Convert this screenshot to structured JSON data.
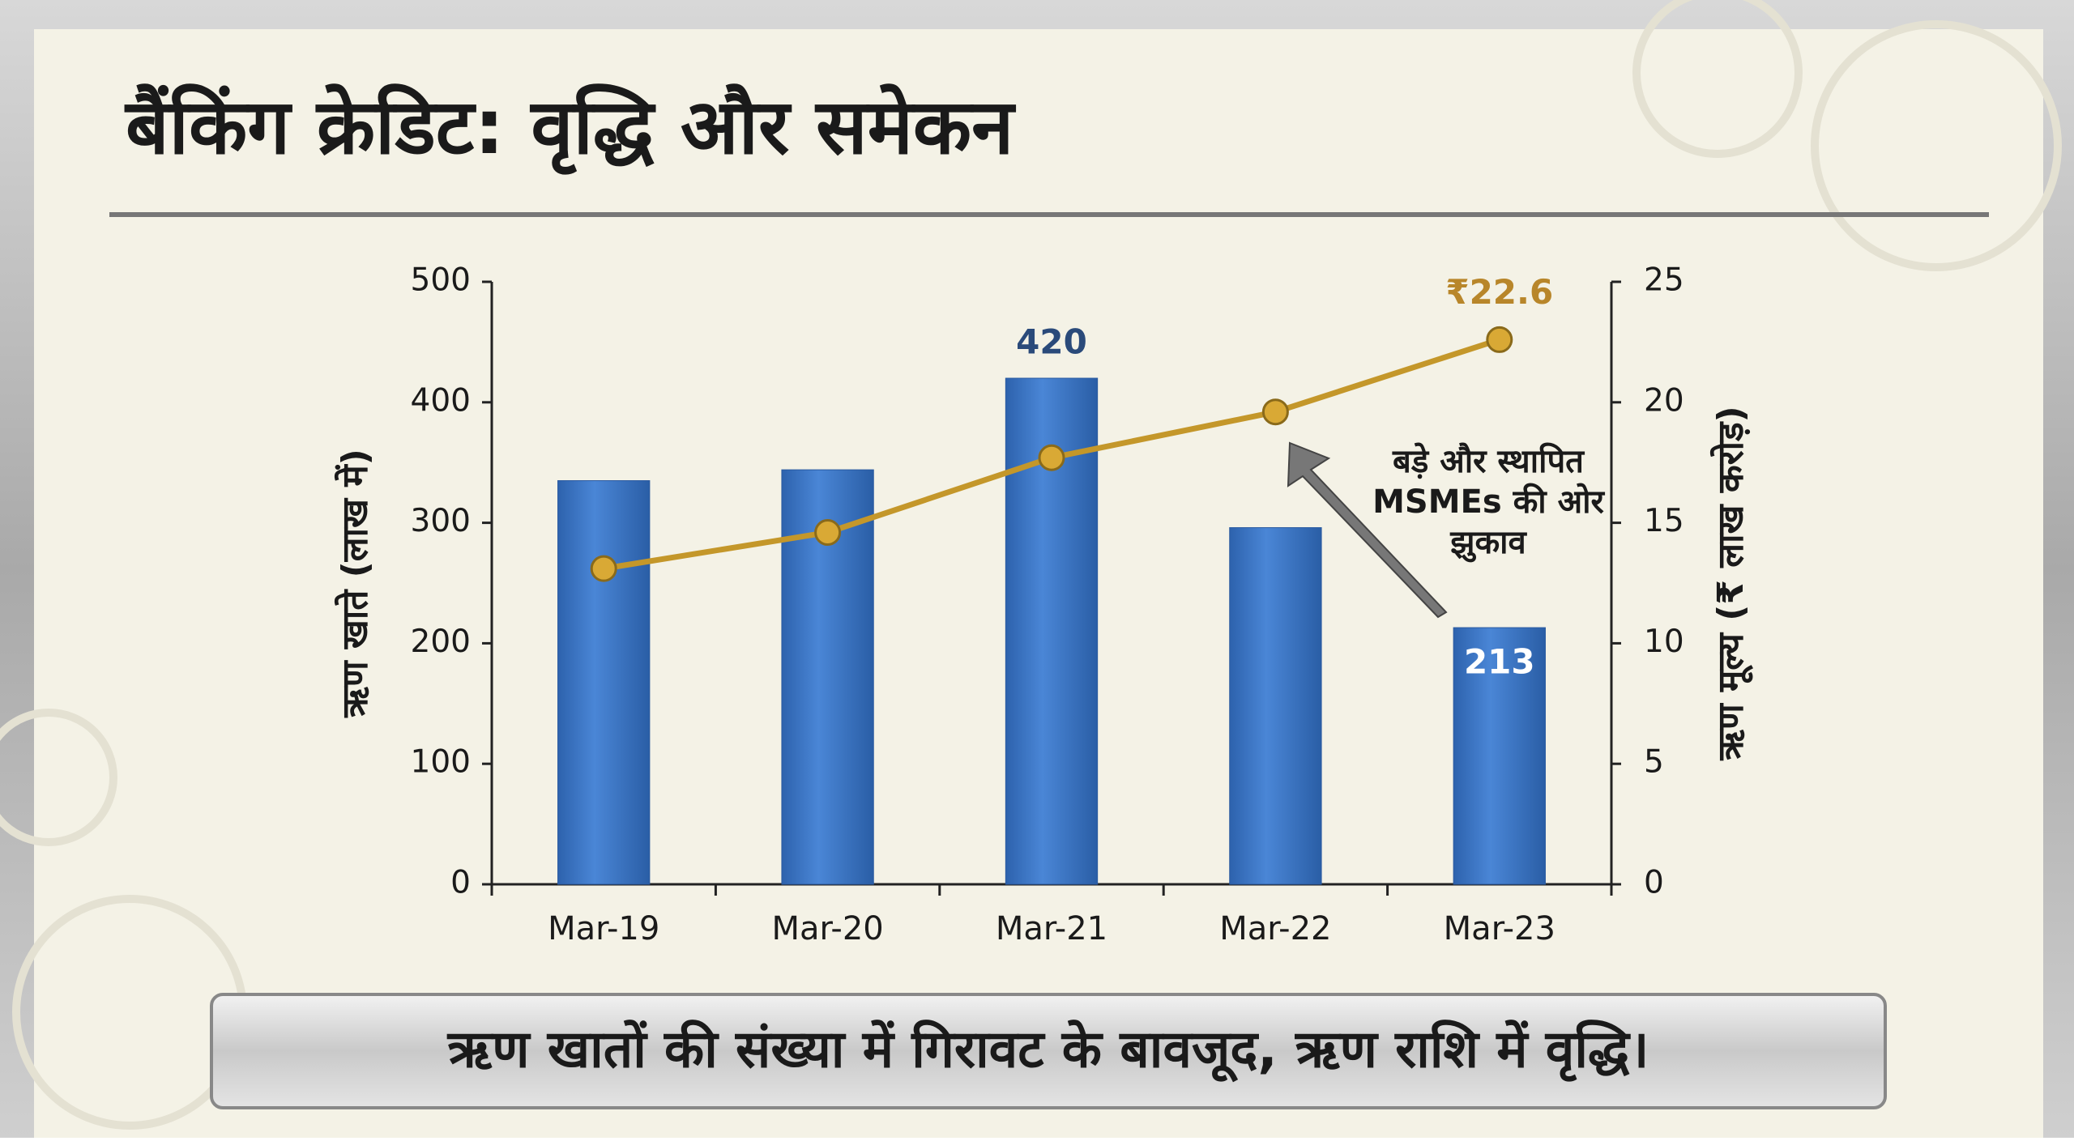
{
  "chart_data": {
    "type": "bar_line",
    "title": "बैंकिंग क्रेडिट: वृद्धि और समेकन",
    "categories": [
      "Mar-19",
      "Mar-20",
      "Mar-21",
      "Mar-22",
      "Mar-23"
    ],
    "series": [
      {
        "name": "ऋण खाते",
        "type": "bar",
        "color": "#3a74c4",
        "values": [
          335,
          344,
          420,
          296,
          213
        ],
        "value_labels": [
          null,
          null,
          "420",
          null,
          "213"
        ]
      },
      {
        "name": "ऋण मूल्य",
        "type": "line",
        "axis": "y2",
        "color": "#c4972a",
        "values": [
          13.1,
          14.6,
          17.7,
          19.6,
          22.6
        ],
        "value_labels": [
          null,
          null,
          null,
          null,
          "₹22.6"
        ]
      }
    ],
    "ylabel": "ऋण खाते (लाख में)",
    "y2label": "ऋण मूल्य (₹ लाख करोड़)",
    "ylim": [
      0,
      500
    ],
    "yticks": [
      0,
      100,
      200,
      300,
      400,
      500
    ],
    "y2lim": [
      0,
      25
    ],
    "y2ticks": [
      0,
      5,
      10,
      15,
      20,
      25
    ],
    "annotation": [
      "बड़े और स्थापित",
      "MSMEs की ओर",
      "झुकाव"
    ],
    "footer": "ऋण खातों की संख्या में गिरावट के बावजूद, ऋण राशि में वृद्धि।"
  }
}
